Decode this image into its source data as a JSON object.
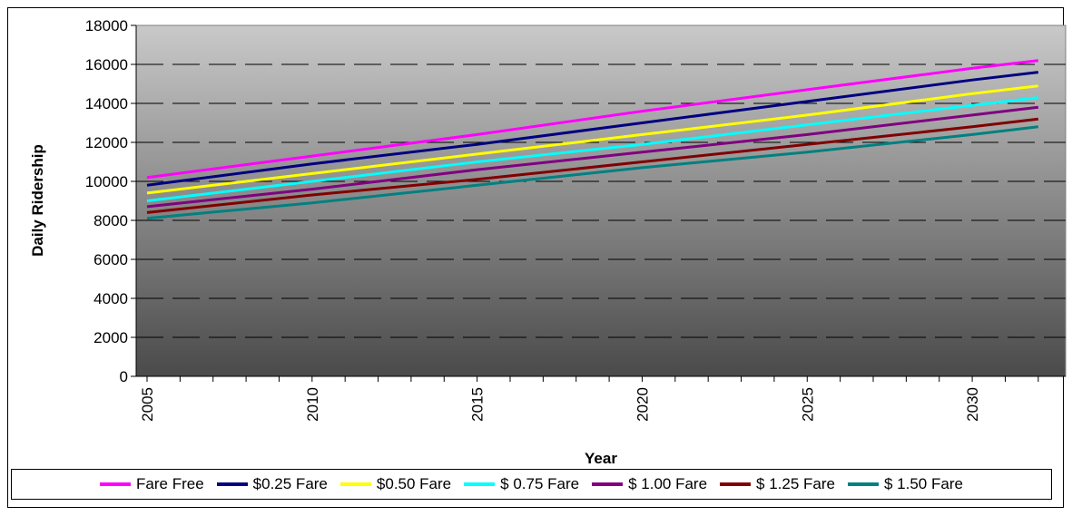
{
  "chart_data": {
    "type": "line",
    "title": "",
    "xlabel": "Year",
    "ylabel": "Daily Ridership",
    "ylim": [
      0,
      18000
    ],
    "xlim": [
      2005,
      2032
    ],
    "y_ticks": [
      "0",
      "2000",
      "4000",
      "6000",
      "8000",
      "10000",
      "12000",
      "14000",
      "16000",
      "18000"
    ],
    "x_ticks": [
      "2005",
      "2010",
      "2015",
      "2020",
      "2025",
      "2030"
    ],
    "grid": true,
    "legend_position": "bottom",
    "series": [
      {
        "name": "Fare Free",
        "color": "#ff00ff",
        "x": [
          2005,
          2010,
          2015,
          2020,
          2025,
          2030,
          2032
        ],
        "values": [
          10200,
          11300,
          12400,
          13600,
          14700,
          15800,
          16200
        ]
      },
      {
        "name": "$0.25 Fare",
        "color": "#000080",
        "x": [
          2005,
          2010,
          2015,
          2020,
          2025,
          2030,
          2032
        ],
        "values": [
          9800,
          10900,
          11900,
          13000,
          14100,
          15200,
          15600
        ]
      },
      {
        "name": "$0.50 Fare",
        "color": "#ffff00",
        "x": [
          2005,
          2010,
          2015,
          2020,
          2025,
          2030,
          2032
        ],
        "values": [
          9400,
          10400,
          11400,
          12400,
          13400,
          14500,
          14900
        ]
      },
      {
        "name": "$ 0.75 Fare",
        "color": "#00ffff",
        "x": [
          2005,
          2010,
          2015,
          2020,
          2025,
          2030,
          2032
        ],
        "values": [
          9000,
          10000,
          11000,
          11900,
          12900,
          13900,
          14300
        ]
      },
      {
        "name": "$ 1.00 Fare",
        "color": "#800080",
        "x": [
          2005,
          2010,
          2015,
          2020,
          2025,
          2030,
          2032
        ],
        "values": [
          8700,
          9600,
          10600,
          11500,
          12400,
          13400,
          13800
        ]
      },
      {
        "name": "$ 1.25 Fare",
        "color": "#800000",
        "x": [
          2005,
          2010,
          2015,
          2020,
          2025,
          2030,
          2032
        ],
        "values": [
          8400,
          9300,
          10100,
          11000,
          11900,
          12800,
          13200
        ]
      },
      {
        "name": "$ 1.50 Fare",
        "color": "#008080",
        "x": [
          2005,
          2010,
          2015,
          2020,
          2025,
          2030,
          2032
        ],
        "values": [
          8100,
          8900,
          9800,
          10700,
          11500,
          12400,
          12800
        ]
      }
    ]
  }
}
